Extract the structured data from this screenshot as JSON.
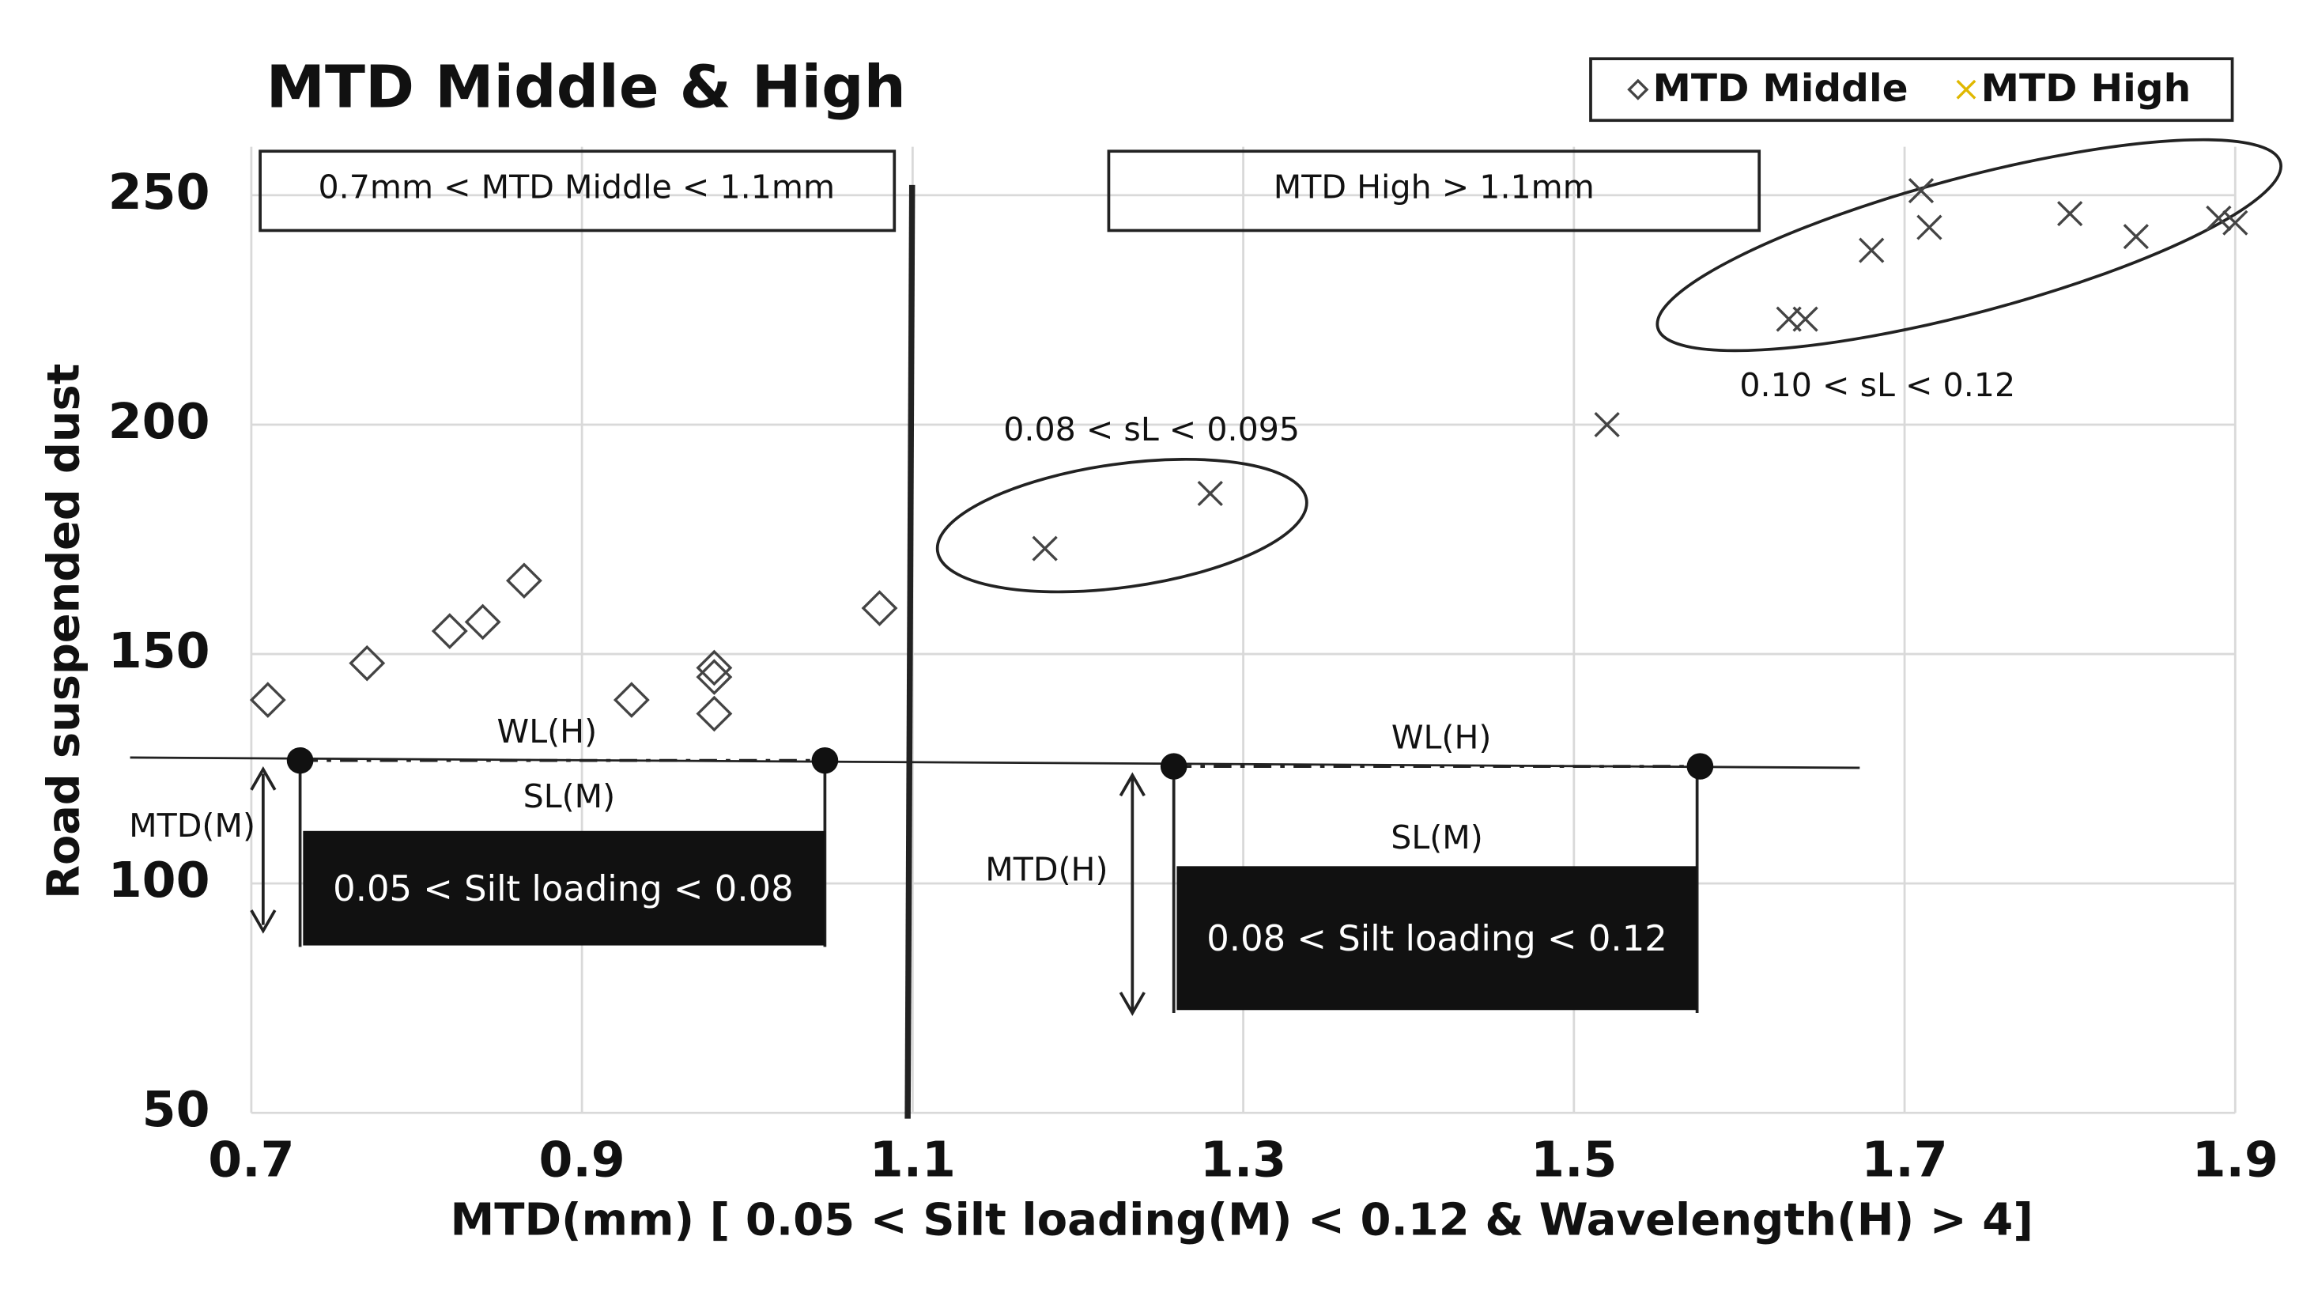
{
  "chart_data": {
    "type": "scatter",
    "title": "MTD Middle & High",
    "xlabel": "MTD(mm) [ 0.05 < Silt loading(M) < 0.12 & Wavelength(H) > 4]",
    "ylabel": "Road suspended dust",
    "xlim": [
      0.7,
      1.9
    ],
    "xticks": [
      0.7,
      0.9,
      1.1,
      1.3,
      1.5,
      1.7,
      1.9
    ],
    "ylim": [
      50,
      250
    ],
    "yticks": [
      50,
      100,
      150,
      200,
      250
    ],
    "grid": true,
    "legend": "top-right",
    "series": [
      {
        "name": "MTD Middle",
        "marker": "diamond",
        "color": "#444444",
        "x": [
          0.71,
          0.77,
          0.82,
          0.84,
          0.865,
          0.93,
          0.98,
          0.98,
          0.98,
          1.08
        ],
        "values": [
          140,
          148,
          155,
          157,
          166,
          140,
          147,
          145,
          137,
          160
        ]
      },
      {
        "name": "MTD High",
        "marker": "x",
        "color": "#444444",
        "x": [
          1.18,
          1.28,
          1.52,
          1.63,
          1.64,
          1.68,
          1.71,
          1.715,
          1.8,
          1.84,
          1.89,
          1.9
        ],
        "values": [
          173,
          185,
          200,
          223,
          223,
          238,
          251,
          243,
          246,
          241,
          245,
          244
        ]
      }
    ],
    "annotations": [
      "0.7mm < MTD Middle < 1.1mm",
      "MTD High > 1.1mm",
      "0.08 < sL < 0.095",
      "0.10 < sL < 0.12",
      "WL(H)",
      "SL(M)",
      "MTD(M)",
      "0.05 < Silt loading < 0.08",
      "WL(H)",
      "SL(M)",
      "MTD(H)",
      "0.08 < Silt loading < 0.12"
    ]
  }
}
